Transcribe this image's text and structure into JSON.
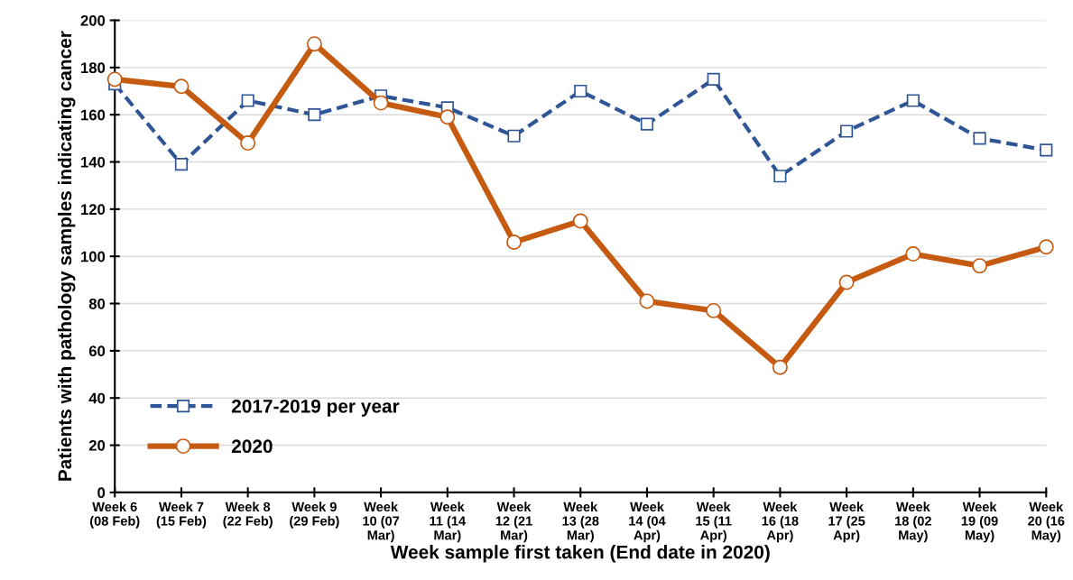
{
  "chart_data": {
    "type": "line",
    "xlabel": "Week sample first taken (End date in 2020)",
    "ylabel": "Patients with pathology samples indicating cancer",
    "categories": [
      "Week 6\n(08 Feb)",
      "Week 7\n(15 Feb)",
      "Week 8\n(22 Feb)",
      "Week 9\n(29 Feb)",
      "Week\n10 (07\nMar)",
      "Week\n11 (14\nMar)",
      "Week\n12 (21\nMar)",
      "Week\n13 (28\nMar)",
      "Week\n14 (04\nApr)",
      "Week\n15 (11\nApr)",
      "Week\n16 (18\nApr)",
      "Week\n17 (25\nApr)",
      "Week\n18 (02\nMay)",
      "Week\n19 (09\nMay)",
      "Week\n20 (16\nMay)"
    ],
    "series": [
      {
        "name": "2017-2019 per year",
        "color": "#2f5597",
        "marker": "square",
        "line_style": "dashed",
        "values": [
          173,
          139,
          166,
          160,
          168,
          163,
          151,
          170,
          156,
          175,
          134,
          153,
          166,
          150,
          145
        ]
      },
      {
        "name": "2020",
        "color": "#c55a11",
        "marker": "circle",
        "line_style": "solid",
        "values": [
          175,
          172,
          148,
          190,
          165,
          159,
          106,
          115,
          81,
          77,
          53,
          89,
          101,
          96,
          104
        ]
      }
    ],
    "ylim": [
      0,
      200
    ],
    "yticks": [
      0,
      20,
      40,
      60,
      80,
      100,
      120,
      140,
      160,
      180,
      200
    ],
    "grid": "y",
    "legend": "bottom left"
  }
}
